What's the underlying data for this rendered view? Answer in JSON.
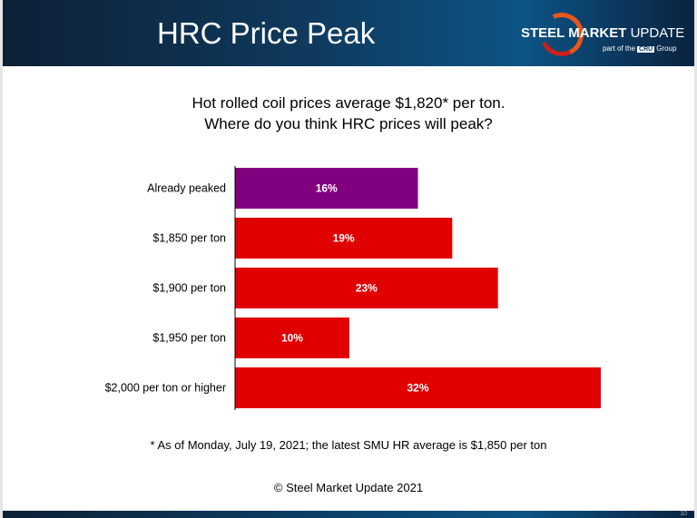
{
  "header": {
    "title": "HRC Price Peak",
    "logo": {
      "bold": "STEEL MARKET",
      "light": "UPDATE",
      "sub_before": "part of the",
      "sub_box": "CRU",
      "sub_after": "Group"
    }
  },
  "question": {
    "line1": "Hot rolled coil prices average $1,820* per ton.",
    "line2": "Where do you think HRC prices will peak?"
  },
  "footnote": "* As of Monday, July 19, 2021; the latest SMU HR average is $1,850 per ton",
  "copyright": "© Steel Market Update 2021",
  "page_number": "10",
  "chart_data": {
    "type": "bar",
    "orientation": "horizontal",
    "categories": [
      "Already peaked",
      "$1,850 per ton",
      "$1,900 per ton",
      "$1,950 per ton",
      "$2,000 per ton or higher"
    ],
    "values": [
      16,
      19,
      23,
      10,
      32
    ],
    "data_labels": [
      "16%",
      "19%",
      "23%",
      "10%",
      "32%"
    ],
    "colors": [
      "#800080",
      "#e00000",
      "#e00000",
      "#e00000",
      "#e00000"
    ],
    "unit": "%",
    "xlim": [
      0,
      32
    ],
    "grid": false
  }
}
